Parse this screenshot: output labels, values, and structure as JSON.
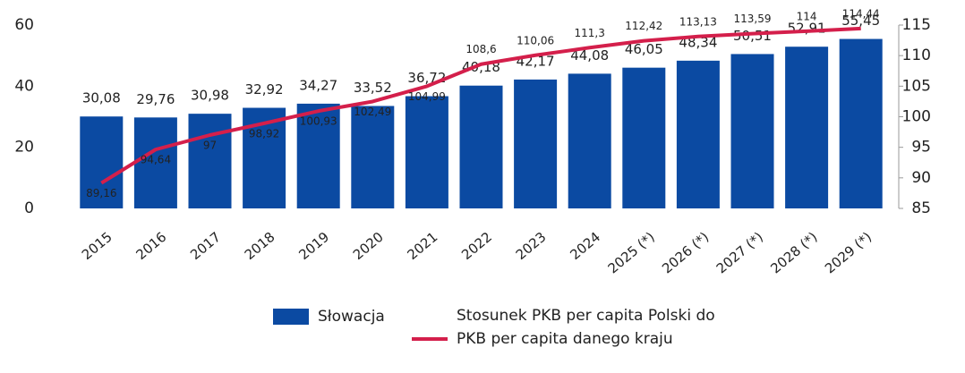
{
  "chart_data": {
    "type": "bar_line",
    "categories": [
      "2015",
      "2016",
      "2017",
      "2018",
      "2019",
      "2020",
      "2021",
      "2022",
      "2023",
      "2024",
      "2025 (*)",
      "2026 (*)",
      "2027 (*)",
      "2028 (*)",
      "2029 (*)"
    ],
    "series": [
      {
        "name": "Słowacja",
        "type": "bar",
        "color": "#0b4aa2",
        "axis": "y",
        "values": [
          30.08,
          29.76,
          30.98,
          32.92,
          34.27,
          33.52,
          36.72,
          40.18,
          42.17,
          44.08,
          46.05,
          48.34,
          50.51,
          52.91,
          55.45
        ],
        "value_labels": [
          "30,08",
          "29,76",
          "30,98",
          "32,92",
          "34,27",
          "33,52",
          "36,72",
          "40,18",
          "42,17",
          "44,08",
          "46,05",
          "48,34",
          "50,51",
          "52,91",
          "55,45"
        ]
      },
      {
        "name": "Stosunek PKB per capita Polski do PKB per capita danego kraju",
        "type": "line",
        "color": "#d41f4b",
        "axis": "y2",
        "values": [
          89.16,
          94.64,
          97,
          98.92,
          100.93,
          102.49,
          104.99,
          108.6,
          110.06,
          111.3,
          112.42,
          113.13,
          113.59,
          114,
          114.44
        ],
        "value_labels": [
          "89,16",
          "94,64",
          "97",
          "98,92",
          "100,93",
          "102,49",
          "104,99",
          "108,6",
          "110,06",
          "111,3",
          "112,42",
          "113,13",
          "113,59",
          "114",
          "114,44"
        ]
      }
    ],
    "ylim": [
      0,
      60
    ],
    "yticks": [
      0,
      20,
      40,
      60
    ],
    "y2lim": [
      85,
      115
    ],
    "y2ticks": [
      85,
      90,
      95,
      100,
      105,
      110,
      115
    ],
    "grid": false
  }
}
